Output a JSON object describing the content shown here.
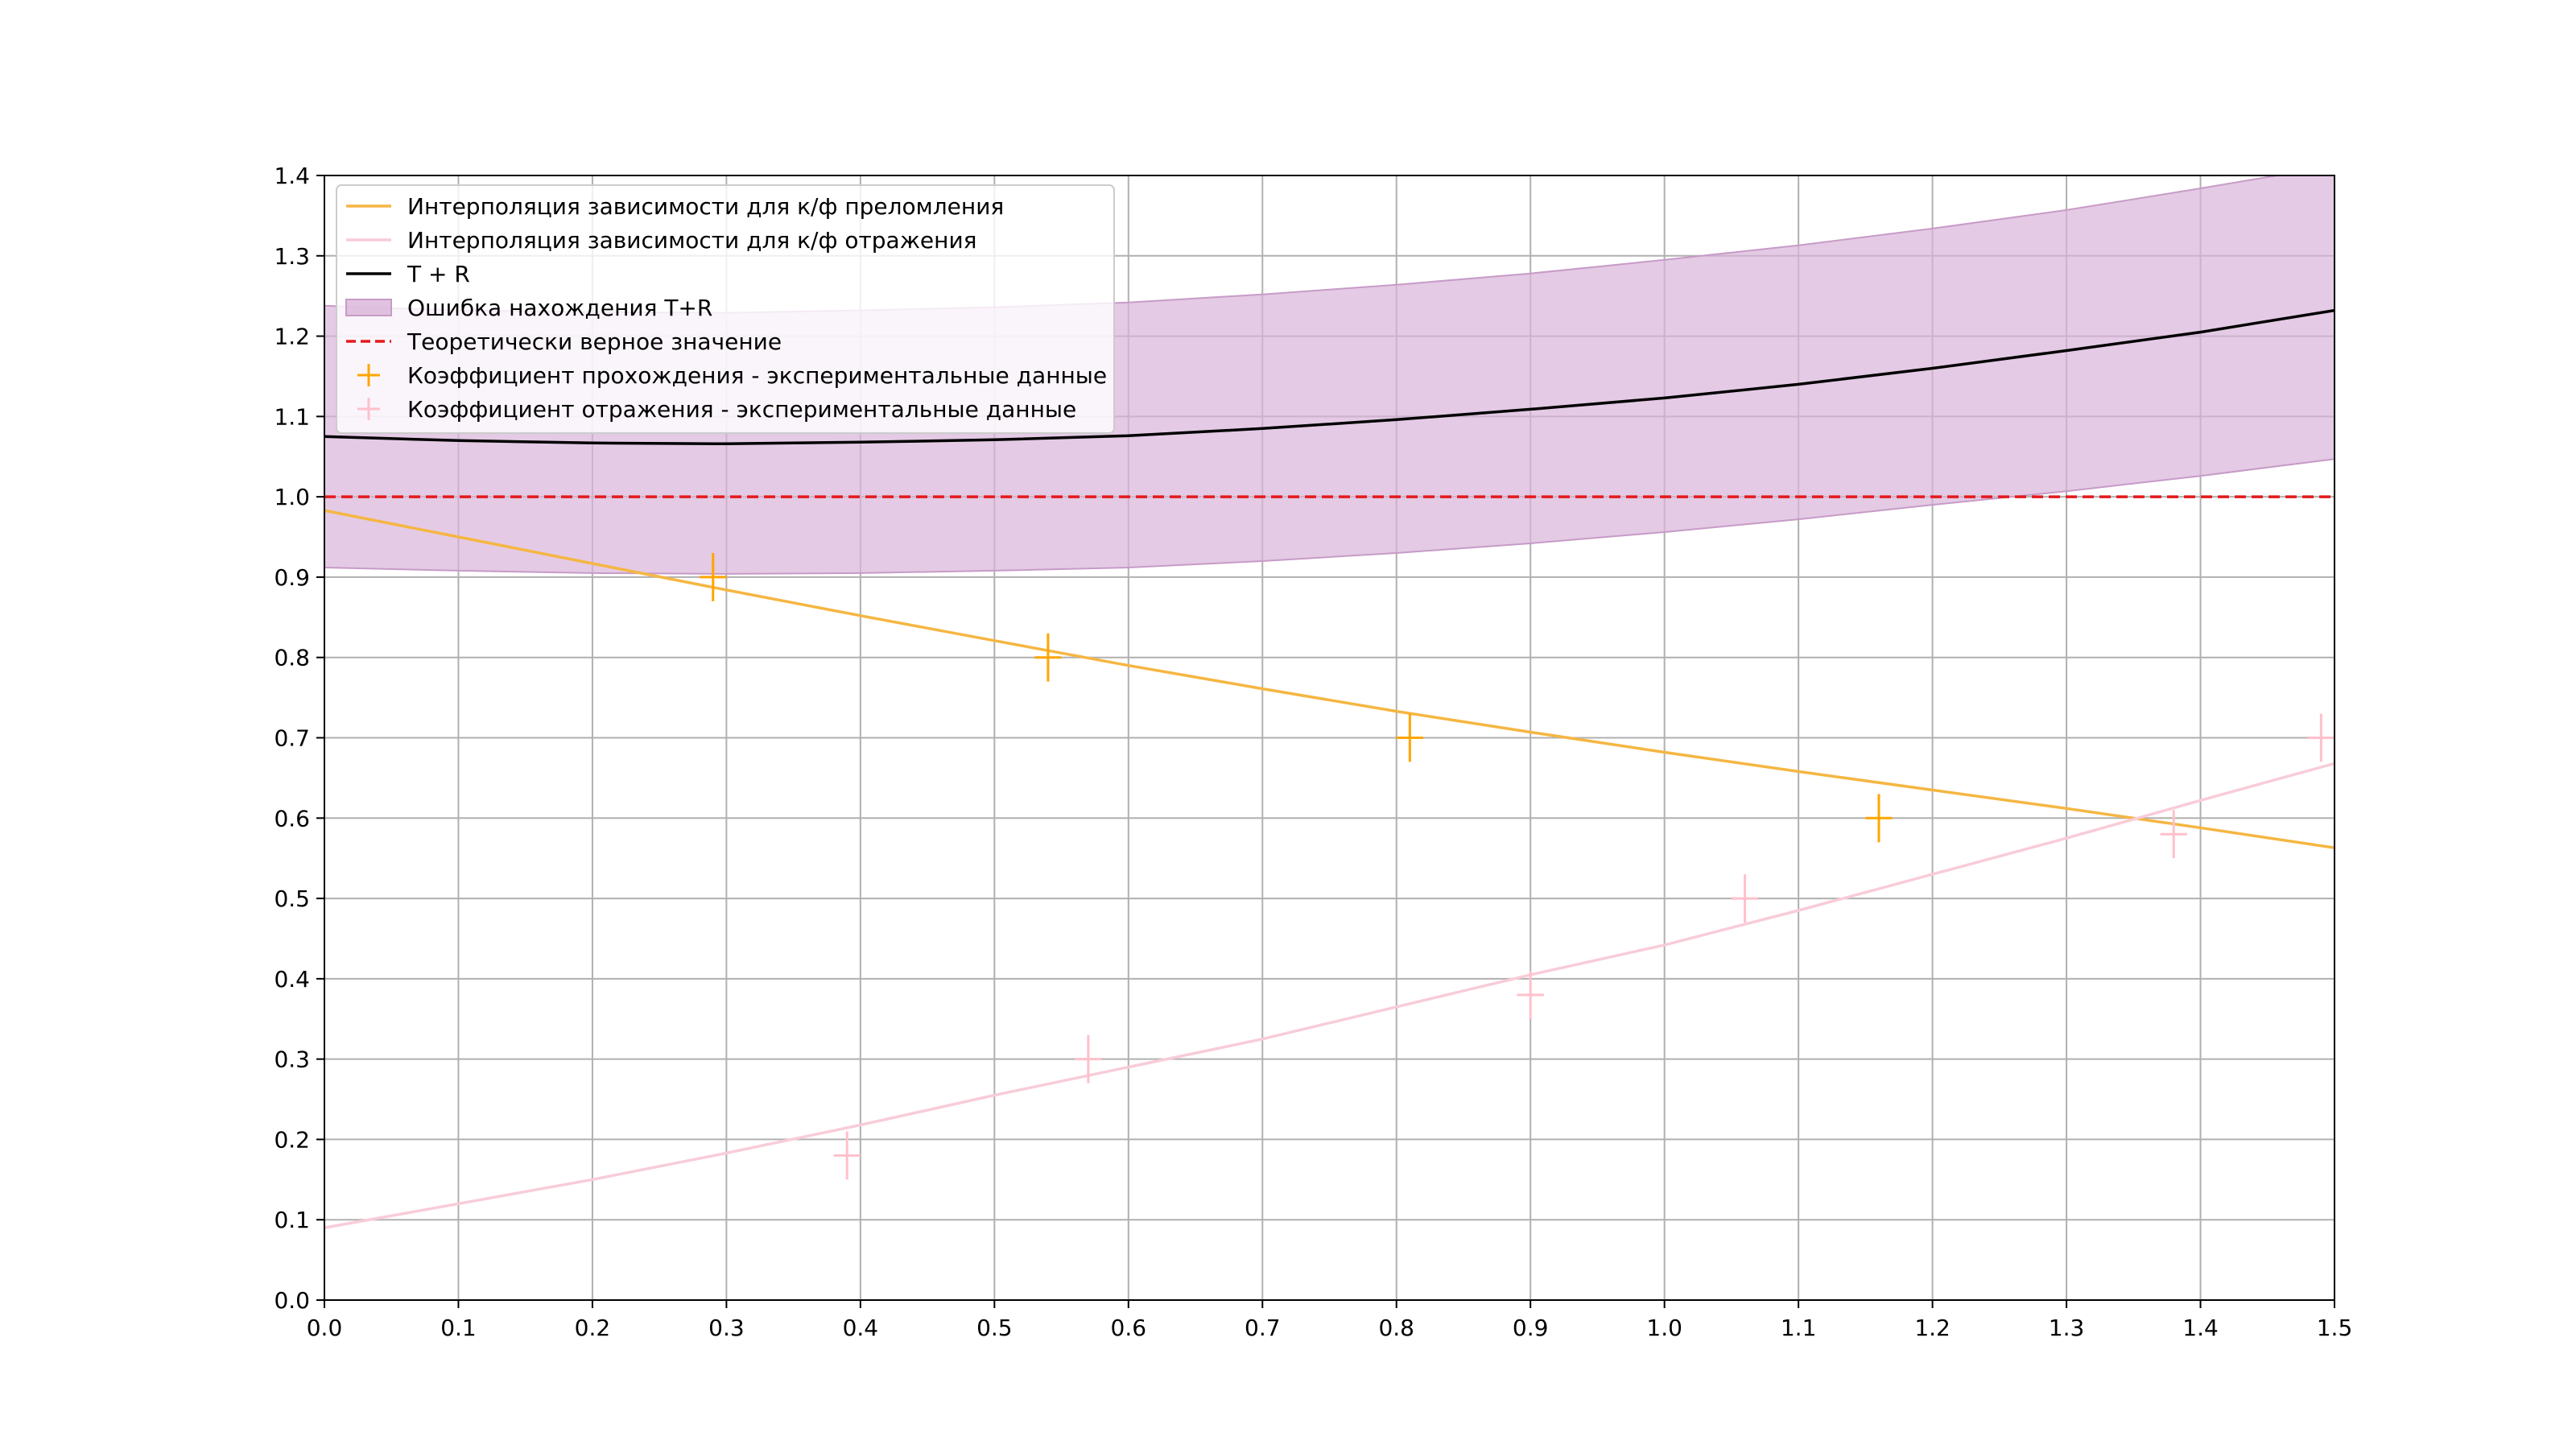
{
  "chart_data": {
    "type": "line",
    "title": "",
    "xlabel": "",
    "ylabel": "",
    "xlim": [
      0.0,
      1.5
    ],
    "ylim": [
      0.0,
      1.4
    ],
    "x_ticks": [
      "0.0",
      "0.1",
      "0.2",
      "0.3",
      "0.4",
      "0.5",
      "0.6",
      "0.7",
      "0.8",
      "0.9",
      "1.0",
      "1.1",
      "1.2",
      "1.3",
      "1.4",
      "1.5"
    ],
    "y_ticks": [
      "0.0",
      "0.1",
      "0.2",
      "0.3",
      "0.4",
      "0.5",
      "0.6",
      "0.7",
      "0.8",
      "0.9",
      "1.0",
      "1.1",
      "1.2",
      "1.3",
      "1.4"
    ],
    "grid": true,
    "legend_position": "upper-left",
    "colors": {
      "transmission": "#f5b642",
      "reflection": "#f8ccd8",
      "sum": "#000000",
      "band": "#d8b4d8",
      "theory": "#e41a1c",
      "transmission_points": "#ffa500",
      "reflection_points": "#ffc0cb"
    },
    "series": [
      {
        "name": "Интерполяция зависимости для к/ф преломления",
        "kind": "line",
        "x": [
          0.0,
          0.1,
          0.2,
          0.3,
          0.4,
          0.5,
          0.6,
          0.7,
          0.8,
          0.9,
          1.0,
          1.1,
          1.2,
          1.3,
          1.4,
          1.5
        ],
        "y": [
          0.983,
          0.95,
          0.917,
          0.884,
          0.852,
          0.821,
          0.79,
          0.761,
          0.733,
          0.707,
          0.682,
          0.658,
          0.635,
          0.612,
          0.588,
          0.563
        ]
      },
      {
        "name": "Интерполяция зависимости для к/ф отражения",
        "kind": "line",
        "x": [
          0.0,
          0.1,
          0.2,
          0.3,
          0.4,
          0.5,
          0.6,
          0.7,
          0.8,
          0.9,
          1.0,
          1.1,
          1.2,
          1.3,
          1.4,
          1.5
        ],
        "y": [
          0.09,
          0.12,
          0.15,
          0.183,
          0.218,
          0.255,
          0.29,
          0.325,
          0.365,
          0.405,
          0.442,
          0.485,
          0.53,
          0.575,
          0.622,
          0.668
        ]
      },
      {
        "name": "T + R",
        "kind": "line",
        "x": [
          0.0,
          0.1,
          0.2,
          0.3,
          0.4,
          0.5,
          0.6,
          0.7,
          0.8,
          0.9,
          1.0,
          1.1,
          1.2,
          1.3,
          1.4,
          1.5
        ],
        "y": [
          1.075,
          1.07,
          1.067,
          1.066,
          1.068,
          1.071,
          1.076,
          1.085,
          1.096,
          1.109,
          1.123,
          1.14,
          1.16,
          1.182,
          1.205,
          1.232
        ]
      },
      {
        "name": "Ошибка нахождения T+R",
        "kind": "band",
        "x": [
          0.0,
          0.1,
          0.2,
          0.3,
          0.4,
          0.5,
          0.6,
          0.7,
          0.8,
          0.9,
          1.0,
          1.1,
          1.2,
          1.3,
          1.4,
          1.5
        ],
        "lower": [
          0.912,
          0.908,
          0.905,
          0.904,
          0.905,
          0.908,
          0.912,
          0.92,
          0.93,
          0.942,
          0.956,
          0.972,
          0.99,
          1.007,
          1.026,
          1.047
        ],
        "upper": [
          1.238,
          1.232,
          1.23,
          1.229,
          1.232,
          1.236,
          1.242,
          1.252,
          1.264,
          1.278,
          1.295,
          1.313,
          1.334,
          1.357,
          1.384,
          1.412
        ]
      },
      {
        "name": "Теоретически верное значение",
        "kind": "hline",
        "y": 1.0
      },
      {
        "name": "Коэффициент прохождения - экспериментальные данные",
        "kind": "errorbar",
        "x": [
          0.29,
          0.54,
          0.81,
          1.16
        ],
        "y": [
          0.9,
          0.8,
          0.7,
          0.6
        ],
        "xerr": 0.01,
        "yerr": 0.03
      },
      {
        "name": "Коэффициент отражения - экспериментальные данные",
        "kind": "errorbar",
        "x": [
          0.39,
          0.57,
          0.9,
          1.06,
          1.38,
          1.49
        ],
        "y": [
          0.18,
          0.3,
          0.38,
          0.5,
          0.58,
          0.7
        ],
        "xerr": 0.01,
        "yerr": 0.03
      }
    ]
  }
}
